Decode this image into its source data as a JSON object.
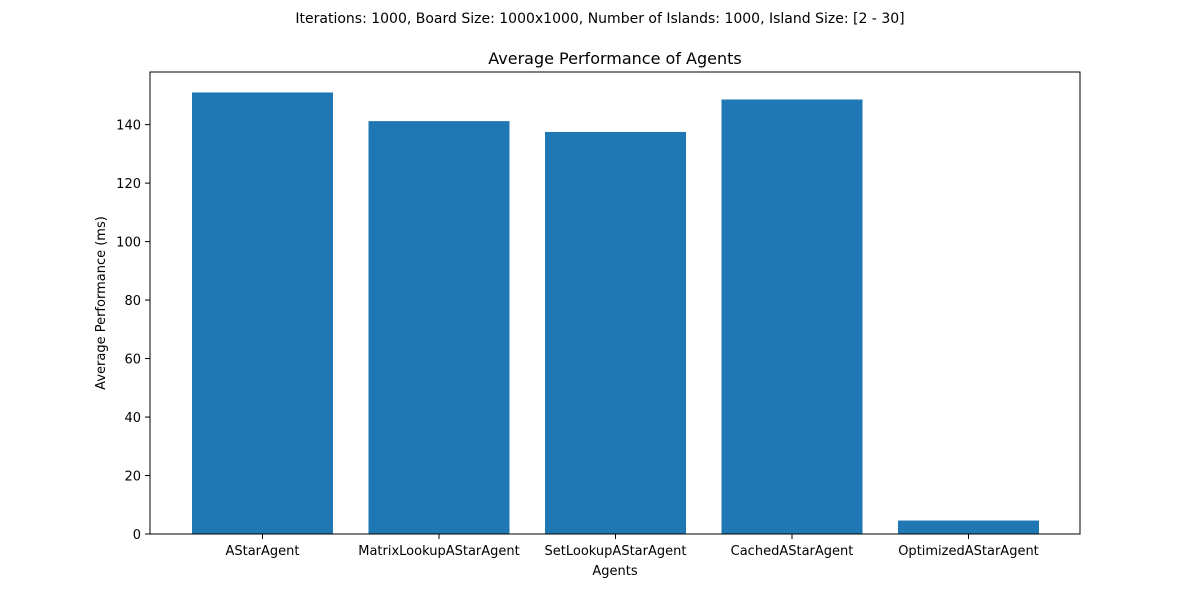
{
  "figure": {
    "suptitle": "Iterations: 1000, Board Size: 1000x1000, Number of Islands: 1000, Island Size: [2 - 30]"
  },
  "chart_data": {
    "type": "bar",
    "title": "Average Performance of Agents",
    "xlabel": "Agents",
    "ylabel": "Average Performance (ms)",
    "categories": [
      "AStarAgent",
      "MatrixLookupAStarAgent",
      "SetLookupAStarAgent",
      "CachedAStarAgent",
      "OptimizedAStarAgent"
    ],
    "values": [
      151.0,
      141.2,
      137.5,
      148.6,
      4.6
    ],
    "ylim": [
      0,
      158
    ],
    "yticks": [
      0,
      20,
      40,
      60,
      80,
      100,
      120,
      140
    ],
    "grid": false,
    "legend": "none",
    "bar_color": "#1f77b4"
  }
}
